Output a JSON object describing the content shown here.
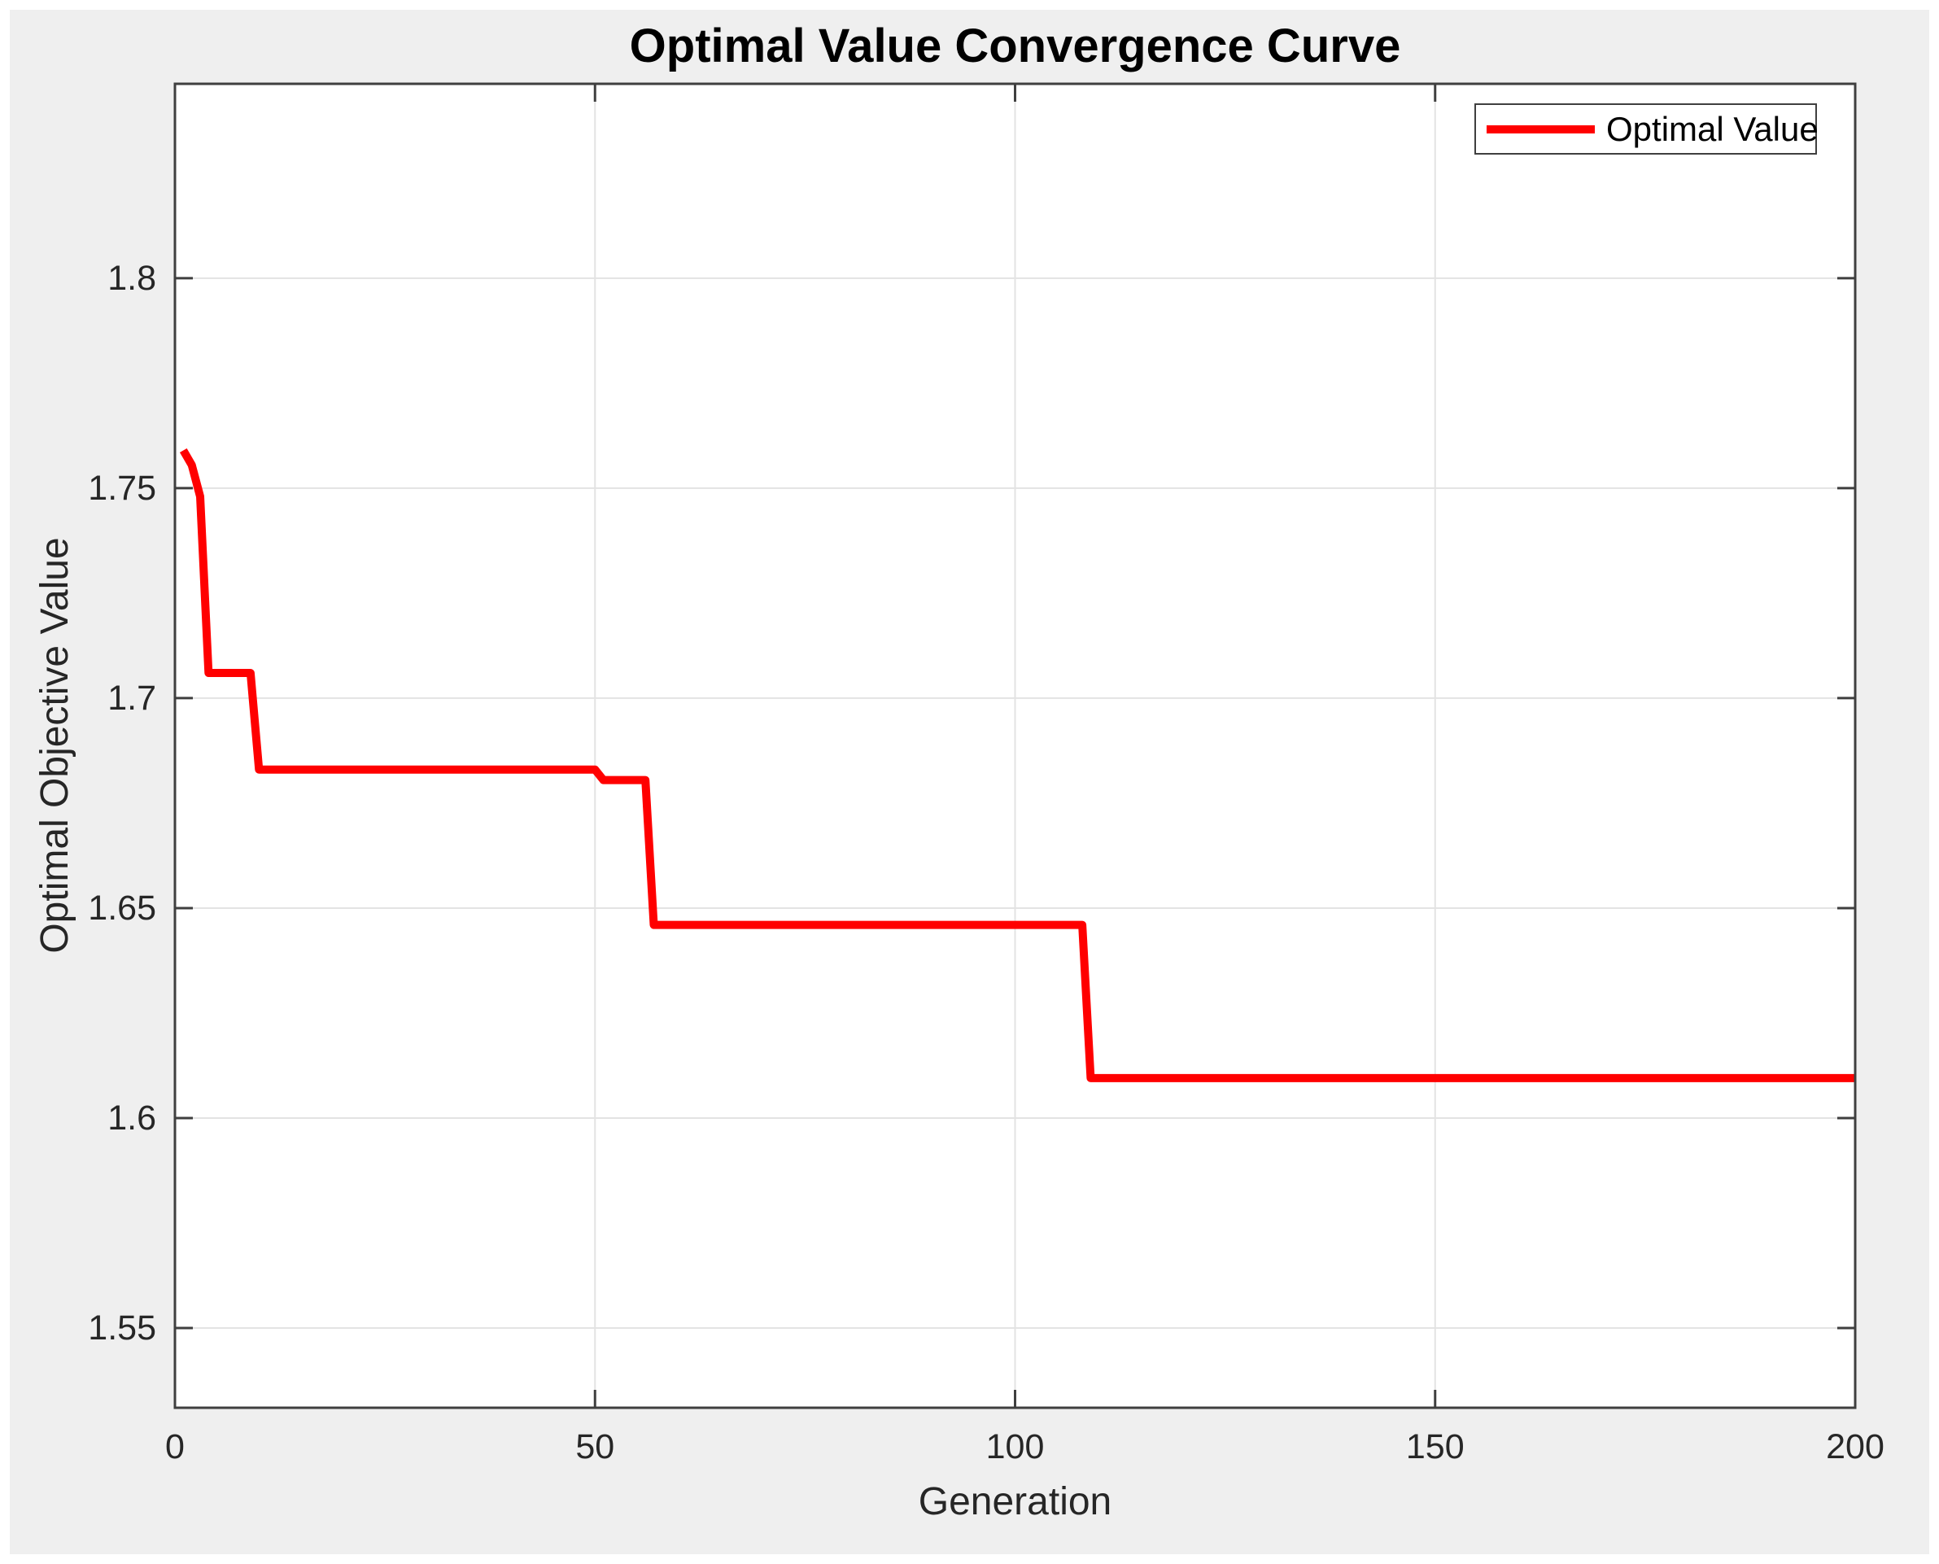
{
  "chart_data": {
    "type": "line",
    "title": "Optimal Value Convergence Curve",
    "xlabel": "Generation",
    "ylabel": "Optimal Objective Value",
    "grid": true,
    "xlim": [
      0,
      200
    ],
    "ylim": [
      1.531,
      1.8463
    ],
    "xticks": [
      {
        "value": 0,
        "label": "0"
      },
      {
        "value": 50,
        "label": "50"
      },
      {
        "value": 100,
        "label": "100"
      },
      {
        "value": 150,
        "label": "150"
      },
      {
        "value": 200,
        "label": "200"
      }
    ],
    "yticks": [
      {
        "value": 1.55,
        "label": "1.55"
      },
      {
        "value": 1.6,
        "label": "1.6"
      },
      {
        "value": 1.65,
        "label": "1.65"
      },
      {
        "value": 1.7,
        "label": "1.7"
      },
      {
        "value": 1.75,
        "label": "1.75"
      },
      {
        "value": 1.8,
        "label": "1.8"
      }
    ],
    "series": [
      {
        "name": "Optimal Value",
        "color": "#ff0000",
        "line_width": 10,
        "points": [
          [
            1,
            1.759
          ],
          [
            2,
            1.7555
          ],
          [
            3,
            1.748
          ],
          [
            4,
            1.706
          ],
          [
            9,
            1.706
          ],
          [
            10,
            1.683
          ],
          [
            50,
            1.683
          ],
          [
            51,
            1.6805
          ],
          [
            56,
            1.6805
          ],
          [
            57,
            1.646
          ],
          [
            108,
            1.646
          ],
          [
            109,
            1.6095
          ],
          [
            200,
            1.6095
          ]
        ]
      }
    ],
    "legend": {
      "position": "top-right",
      "entries": [
        {
          "label": "Optimal Value",
          "color": "#ff0000"
        }
      ]
    },
    "colors": {
      "figure_background": "#efefef",
      "plot_background": "#ffffff",
      "grid": "#e3e3e3",
      "axis_frame": "#3f3f3f",
      "tick_text": "#262626",
      "title_text": "#000000",
      "line": "#ff0000"
    }
  }
}
